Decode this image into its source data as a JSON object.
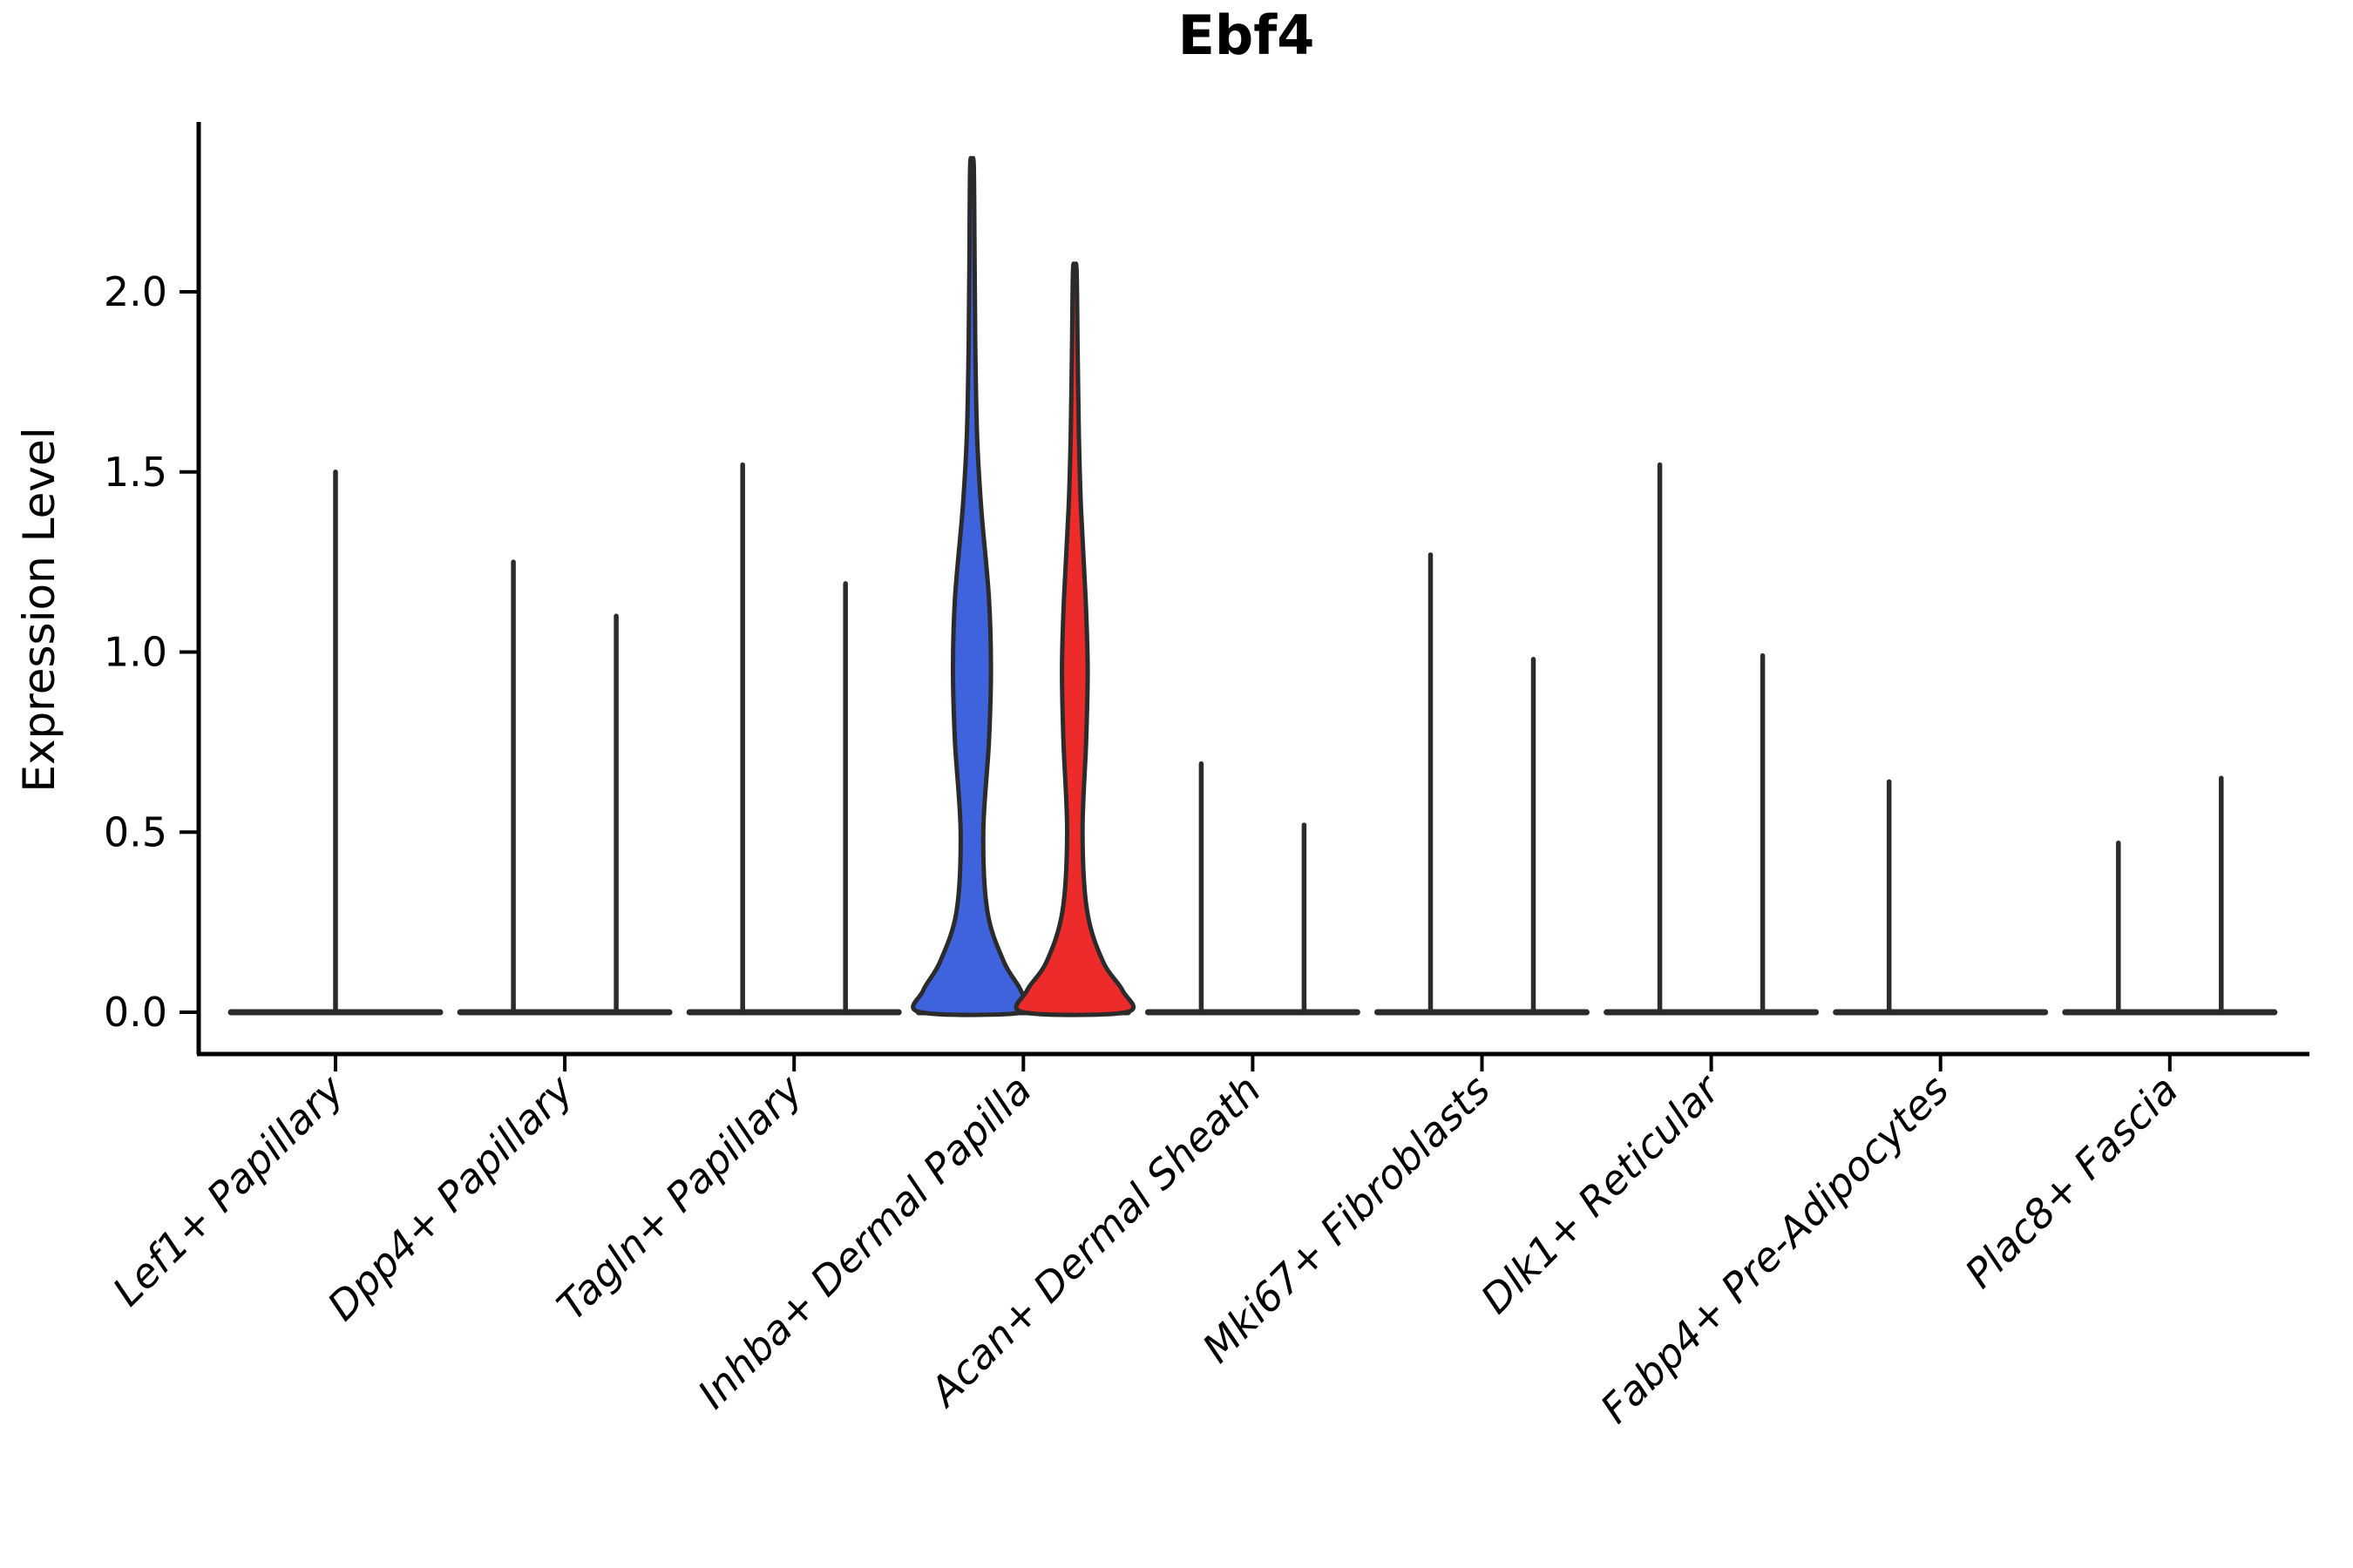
{
  "chart_data": {
    "type": "violin",
    "title": "Ebf4",
    "ylabel": "Expression Level",
    "xlabel": "",
    "ylim": [
      0,
      2.45
    ],
    "grid": false,
    "legend": "none",
    "yticks": [
      {
        "value": 0.0,
        "label": "0.0"
      },
      {
        "value": 0.5,
        "label": "0.5"
      },
      {
        "value": 1.0,
        "label": "1.0"
      },
      {
        "value": 1.5,
        "label": "1.5"
      },
      {
        "value": 2.0,
        "label": "2.0"
      }
    ],
    "categories": [
      "Lef1+ Papillary",
      "Dpp4+ Papillary",
      "Tagln+ Papillary",
      "Inhba+ Dermal Papilla",
      "Acan+ Dermal Sheath",
      "Mki67+ Fibroblasts",
      "Dlk1+ Reticular",
      "Fabp4+ Pre-Adipocytes",
      "Plac8+ Fascia"
    ],
    "groups": [
      {
        "category": "Lef1+ Papillary",
        "violins": [
          {
            "slot": "center",
            "shape": "spike",
            "max": 1.5
          }
        ]
      },
      {
        "category": "Dpp4+ Papillary",
        "violins": [
          {
            "slot": "left",
            "shape": "spike",
            "max": 1.25
          },
          {
            "slot": "right",
            "shape": "spike",
            "max": 1.1
          }
        ]
      },
      {
        "category": "Tagln+ Papillary",
        "violins": [
          {
            "slot": "left",
            "shape": "spike",
            "max": 1.52
          },
          {
            "slot": "right",
            "shape": "spike",
            "max": 1.19
          }
        ]
      },
      {
        "category": "Inhba+ Dermal Papilla",
        "violins": [
          {
            "slot": "left",
            "shape": "violin",
            "max": 2.35,
            "fill": "#3E63DC",
            "profile": [
              [
                0,
                1.0
              ],
              [
                0.06,
                0.95
              ],
              [
                0.14,
                0.62
              ],
              [
                0.28,
                0.3
              ],
              [
                0.5,
                0.22
              ],
              [
                0.75,
                0.33
              ],
              [
                0.95,
                0.37
              ],
              [
                1.15,
                0.33
              ],
              [
                1.4,
                0.18
              ],
              [
                1.6,
                0.1
              ],
              [
                1.85,
                0.065
              ],
              [
                2.1,
                0.05
              ],
              [
                2.35,
                0.035
              ]
            ]
          },
          {
            "slot": "right",
            "shape": "violin",
            "max": 2.06,
            "fill": "#EE2B2B",
            "profile": [
              [
                0,
                1.0
              ],
              [
                0.06,
                0.93
              ],
              [
                0.14,
                0.55
              ],
              [
                0.28,
                0.24
              ],
              [
                0.5,
                0.15
              ],
              [
                0.75,
                0.22
              ],
              [
                0.95,
                0.25
              ],
              [
                1.15,
                0.21
              ],
              [
                1.4,
                0.12
              ],
              [
                1.6,
                0.08
              ],
              [
                1.85,
                0.055
              ],
              [
                2.06,
                0.035
              ]
            ]
          }
        ]
      },
      {
        "category": "Acan+ Dermal Sheath",
        "violins": [
          {
            "slot": "left",
            "shape": "spike",
            "max": 0.69
          },
          {
            "slot": "right",
            "shape": "spike",
            "max": 0.52
          }
        ]
      },
      {
        "category": "Mki67+ Fibroblasts",
        "violins": [
          {
            "slot": "left",
            "shape": "spike",
            "max": 1.27
          },
          {
            "slot": "right",
            "shape": "spike",
            "max": 0.98
          }
        ]
      },
      {
        "category": "Dlk1+ Reticular",
        "violins": [
          {
            "slot": "left",
            "shape": "spike",
            "max": 1.52
          },
          {
            "slot": "right",
            "shape": "spike",
            "max": 0.99
          }
        ]
      },
      {
        "category": "Fabp4+ Pre-Adipocytes",
        "violins": [
          {
            "slot": "left",
            "shape": "spike",
            "max": 0.64
          }
        ]
      },
      {
        "category": "Plac8+ Fascia",
        "violins": [
          {
            "slot": "left",
            "shape": "spike",
            "max": 0.47
          },
          {
            "slot": "right",
            "shape": "spike",
            "max": 0.65
          }
        ]
      }
    ]
  },
  "style": {
    "blue": "#3E63DC",
    "red": "#EE2B2B",
    "outline": "#2B2B2B",
    "axis": "#000000",
    "background": "#FFFFFF"
  }
}
